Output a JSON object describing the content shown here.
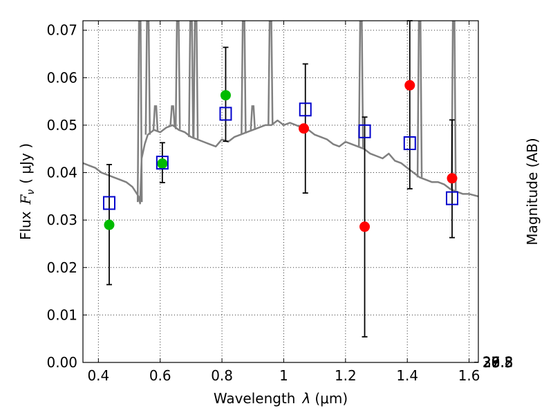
{
  "chart_data": {
    "type": "scatter",
    "title": "",
    "xlabel_prefix": "Wavelength",
    "xlabel_symbol": "λ",
    "xlabel_unit": "(μm)",
    "ylabel_prefix": "Flux",
    "ylabel_symbol": "F",
    "ylabel_sub": "ν",
    "ylabel_unit": "( μJy )",
    "y2label": "Magnitude (AB)",
    "xlim": [
      0.35,
      1.63
    ],
    "ylim": [
      0.0,
      0.072
    ],
    "xticks": [
      0.4,
      0.6,
      0.8,
      1.0,
      1.2,
      1.4,
      1.6
    ],
    "xtick_labels": [
      "0.4",
      "0.6",
      "0.8",
      "1",
      "1.2",
      "1.4",
      "1.6"
    ],
    "yticks": [
      0.0,
      0.01,
      0.02,
      0.03,
      0.04,
      0.05,
      0.06,
      0.07
    ],
    "ytick_labels": [
      "0.00",
      "0.01",
      "0.02",
      "0.03",
      "0.04",
      "0.05",
      "0.06",
      "0.07"
    ],
    "mag_ticks": [
      26.8,
      27,
      27.2,
      27.5,
      28,
      28.5,
      29,
      30
    ],
    "mag_tick_labels": [
      "26.8",
      "27",
      "27.2",
      "27.5",
      "28",
      "28.5",
      "29",
      "30"
    ],
    "grid": true,
    "colors": {
      "model": "#808080",
      "green": "#00bb00",
      "red": "#ff0000",
      "square": "#0000cc",
      "errorbar": "#000000"
    },
    "model_spectrum": {
      "x": [
        0.35,
        0.37,
        0.39,
        0.41,
        0.43,
        0.45,
        0.47,
        0.49,
        0.51,
        0.52,
        0.53,
        0.535,
        0.54,
        0.55,
        0.56,
        0.58,
        0.6,
        0.62,
        0.64,
        0.66,
        0.68,
        0.7,
        0.72,
        0.74,
        0.76,
        0.78,
        0.8,
        0.82,
        0.84,
        0.86,
        0.88,
        0.9,
        0.92,
        0.94,
        0.96,
        0.98,
        1.0,
        1.02,
        1.04,
        1.06,
        1.08,
        1.1,
        1.12,
        1.14,
        1.16,
        1.18,
        1.2,
        1.22,
        1.24,
        1.26,
        1.28,
        1.3,
        1.32,
        1.34,
        1.36,
        1.38,
        1.4,
        1.42,
        1.44,
        1.46,
        1.48,
        1.5,
        1.52,
        1.54,
        1.56,
        1.58,
        1.6,
        1.63
      ],
      "y": [
        0.042,
        0.0415,
        0.041,
        0.04,
        0.0395,
        0.039,
        0.0385,
        0.038,
        0.037,
        0.036,
        0.035,
        0.0335,
        0.043,
        0.046,
        0.048,
        0.049,
        0.0485,
        0.0495,
        0.05,
        0.049,
        0.0485,
        0.0475,
        0.047,
        0.0465,
        0.046,
        0.0455,
        0.047,
        0.0465,
        0.0475,
        0.048,
        0.0485,
        0.049,
        0.0495,
        0.05,
        0.05,
        0.051,
        0.05,
        0.0505,
        0.05,
        0.0495,
        0.049,
        0.048,
        0.0475,
        0.047,
        0.046,
        0.0455,
        0.0465,
        0.046,
        0.0455,
        0.045,
        0.044,
        0.0435,
        0.043,
        0.044,
        0.0425,
        0.042,
        0.041,
        0.04,
        0.039,
        0.0385,
        0.038,
        0.038,
        0.0375,
        0.0365,
        0.036,
        0.0355,
        0.0355,
        0.035
      ]
    },
    "emission_lines": [
      {
        "x": 0.534,
        "peak": 0.075
      },
      {
        "x": 0.56,
        "peak": 0.075
      },
      {
        "x": 0.585,
        "peak": 0.054
      },
      {
        "x": 0.64,
        "peak": 0.054
      },
      {
        "x": 0.657,
        "peak": 0.075
      },
      {
        "x": 0.7,
        "peak": 0.075
      },
      {
        "x": 0.715,
        "peak": 0.075
      },
      {
        "x": 0.87,
        "peak": 0.075
      },
      {
        "x": 0.9,
        "peak": 0.054
      },
      {
        "x": 0.957,
        "peak": 0.075
      },
      {
        "x": 1.25,
        "peak": 0.075
      },
      {
        "x": 1.44,
        "peak": 0.075
      },
      {
        "x": 1.55,
        "peak": 0.075
      }
    ],
    "series": [
      {
        "marker": "circle",
        "color_key": "green",
        "x": [
          0.435,
          0.607,
          0.812
        ],
        "y": [
          0.029,
          0.0419,
          0.0563
        ]
      },
      {
        "marker": "circle",
        "color_key": "red",
        "x": [
          1.065,
          1.262,
          1.408,
          1.545
        ],
        "y": [
          0.0493,
          0.0286,
          0.0584,
          0.0388
        ]
      },
      {
        "marker": "square",
        "color_key": "square",
        "x": [
          0.435,
          0.607,
          0.812,
          1.07,
          1.262,
          1.408,
          1.545
        ],
        "y": [
          0.0336,
          0.0421,
          0.0524,
          0.0533,
          0.0487,
          0.0462,
          0.0346
        ]
      }
    ],
    "errorbars": {
      "x": [
        0.435,
        0.607,
        0.812,
        1.07,
        1.262,
        1.408,
        1.545
      ],
      "lo": [
        0.0164,
        0.0379,
        0.0466,
        0.0357,
        0.0054,
        0.0366,
        0.0263
      ],
      "hi": [
        0.0417,
        0.0463,
        0.0664,
        0.0629,
        0.0517,
        0.072,
        0.0511
      ]
    }
  }
}
